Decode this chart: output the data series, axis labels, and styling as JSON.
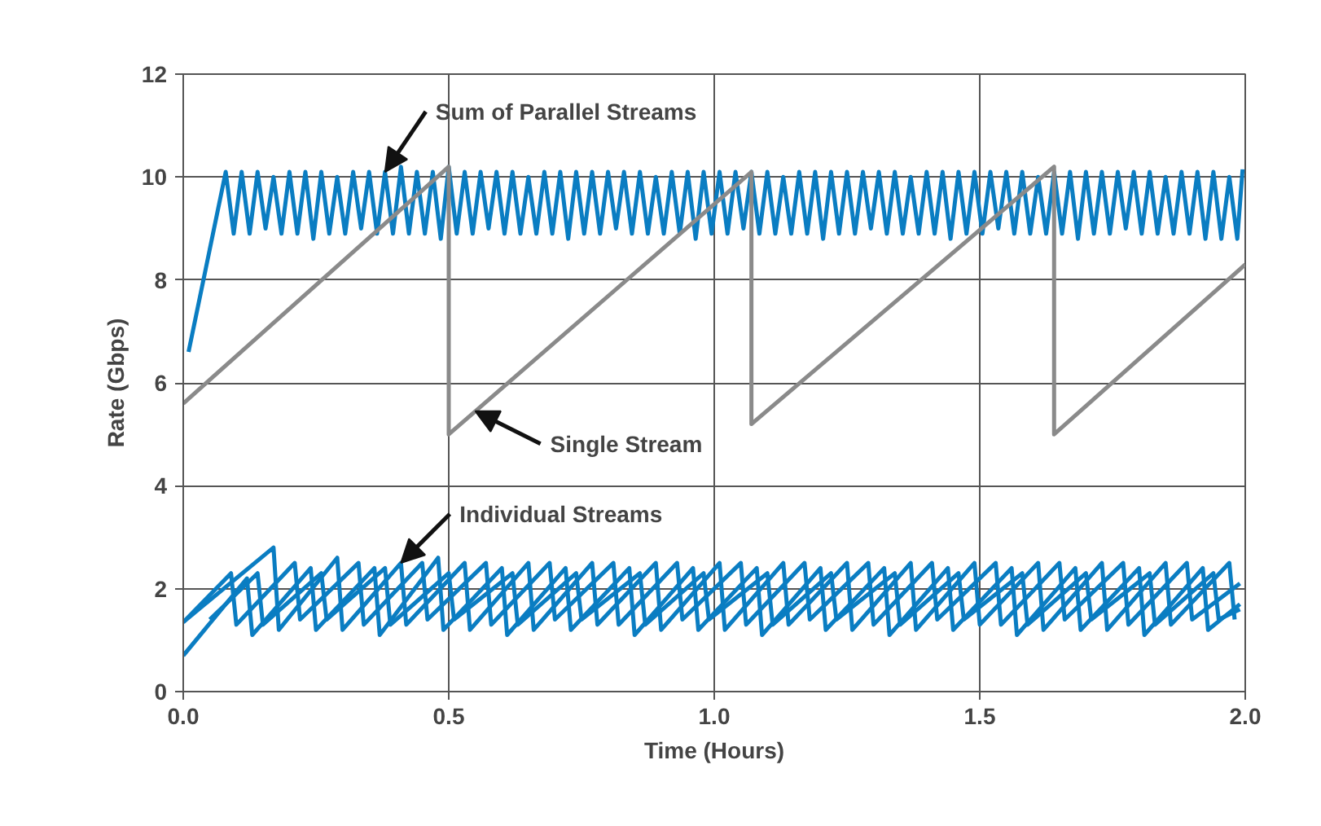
{
  "chart_data": {
    "type": "line",
    "xlabel": "Time (Hours)",
    "ylabel": "Rate (Gbps)",
    "xlim": [
      0,
      2.0
    ],
    "xticks": [
      {
        "value": 0,
        "label": "0.0"
      },
      0.5,
      {
        "value": 1,
        "label": "1.0"
      },
      1.5,
      {
        "value": 2,
        "label": "2.0"
      }
    ],
    "ylim": [
      0,
      12
    ],
    "yticks": [
      0,
      2,
      4,
      6,
      8,
      10,
      12
    ],
    "grid": true,
    "marker": "none",
    "line_style": "solid",
    "series": [
      {
        "color": "#0a7dc2",
        "x": [
          0.01,
          0.08,
          0.095,
          0.11,
          0.125,
          0.14,
          0.155,
          0.17,
          0.185,
          0.2,
          0.215,
          0.23,
          0.245,
          0.26,
          0.275,
          0.29,
          0.305,
          0.32,
          0.335,
          0.35,
          0.365,
          0.38,
          0.395,
          0.41,
          0.425,
          0.44,
          0.455,
          0.47,
          0.485,
          0.5,
          0.515,
          0.53,
          0.545,
          0.56,
          0.575,
          0.59,
          0.605,
          0.62,
          0.635,
          0.65,
          0.665,
          0.68,
          0.695,
          0.71,
          0.725,
          0.74,
          0.755,
          0.77,
          0.785,
          0.8,
          0.815,
          0.83,
          0.845,
          0.86,
          0.875,
          0.89,
          0.905,
          0.92,
          0.935,
          0.95,
          0.965,
          0.98,
          0.995,
          1.01,
          1.025,
          1.04,
          1.055,
          1.07,
          1.085,
          1.1,
          1.115,
          1.13,
          1.145,
          1.16,
          1.175,
          1.19,
          1.205,
          1.22,
          1.235,
          1.25,
          1.265,
          1.28,
          1.295,
          1.31,
          1.325,
          1.34,
          1.355,
          1.37,
          1.385,
          1.4,
          1.415,
          1.43,
          1.445,
          1.46,
          1.475,
          1.49,
          1.505,
          1.52,
          1.535,
          1.55,
          1.565,
          1.58,
          1.595,
          1.61,
          1.625,
          1.64,
          1.655,
          1.67,
          1.685,
          1.7,
          1.715,
          1.73,
          1.745,
          1.76,
          1.775,
          1.79,
          1.805,
          1.82,
          1.835,
          1.85,
          1.865,
          1.88,
          1.895,
          1.91,
          1.925,
          1.94,
          1.955,
          1.97,
          1.985,
          1.995
        ],
        "values": [
          6.6,
          10.1,
          8.9,
          10.1,
          8.9,
          10.1,
          9.0,
          10.0,
          8.9,
          10.1,
          8.9,
          10.1,
          8.8,
          10.1,
          8.9,
          10.0,
          8.9,
          10.1,
          9.0,
          10.1,
          8.9,
          10.1,
          8.9,
          10.2,
          8.9,
          10.1,
          8.9,
          10.1,
          8.8,
          10.2,
          8.9,
          10.1,
          8.9,
          10.1,
          9.0,
          10.1,
          8.9,
          10.1,
          8.9,
          10.0,
          8.9,
          10.1,
          8.9,
          10.1,
          8.8,
          10.1,
          8.9,
          10.1,
          8.9,
          10.1,
          9.0,
          10.1,
          8.9,
          10.1,
          8.9,
          10.0,
          8.9,
          10.1,
          8.9,
          10.1,
          8.8,
          10.1,
          8.9,
          10.1,
          8.9,
          10.1,
          9.0,
          10.1,
          8.9,
          10.1,
          8.9,
          10.0,
          8.9,
          10.1,
          8.9,
          10.1,
          8.8,
          10.1,
          8.9,
          10.1,
          8.9,
          10.1,
          9.0,
          10.1,
          8.9,
          10.1,
          8.9,
          10.0,
          8.9,
          10.1,
          8.9,
          10.1,
          8.8,
          10.1,
          8.9,
          10.1,
          8.9,
          10.1,
          9.0,
          10.1,
          8.9,
          10.1,
          8.9,
          10.0,
          8.9,
          10.1,
          8.9,
          10.1,
          8.8,
          10.1,
          8.9,
          10.1,
          8.9,
          10.1,
          9.0,
          10.1,
          8.9,
          10.1,
          8.9,
          10.0,
          8.9,
          10.1,
          8.9,
          10.1,
          8.8,
          10.1,
          8.8,
          10.0,
          8.8,
          10.15
        ]
      },
      {
        "color": "#8a8a8a",
        "x": [
          0,
          0.5,
          0.5,
          1.07,
          1.07,
          1.64,
          1.64,
          2.0
        ],
        "values": [
          5.6,
          10.2,
          5.0,
          10.1,
          5.2,
          10.2,
          5.0,
          8.3
        ]
      },
      {
        "color": "#0a7dc2",
        "x": [
          0,
          0.17,
          0.18,
          0.29,
          0.3,
          0.41,
          0.42,
          0.53,
          0.54,
          0.65,
          0.66,
          0.77,
          0.78,
          0.89,
          0.9,
          1.01,
          1.02,
          1.13,
          1.14,
          1.25,
          1.26,
          1.37,
          1.38,
          1.49,
          1.5,
          1.61,
          1.62,
          1.73,
          1.74,
          1.85,
          1.86,
          1.97,
          1.98
        ],
        "values": [
          1.35,
          2.8,
          1.2,
          2.6,
          1.2,
          2.5,
          1.3,
          2.5,
          1.2,
          2.5,
          1.2,
          2.5,
          1.3,
          2.5,
          1.2,
          2.5,
          1.2,
          2.5,
          1.3,
          2.5,
          1.2,
          2.5,
          1.2,
          2.5,
          1.3,
          2.5,
          1.2,
          2.5,
          1.2,
          2.5,
          1.3,
          2.5,
          1.4
        ]
      },
      {
        "color": "#0a7dc2",
        "x": [
          0,
          0.12,
          0.13,
          0.24,
          0.25,
          0.36,
          0.37,
          0.48,
          0.49,
          0.6,
          0.61,
          0.72,
          0.73,
          0.84,
          0.85,
          0.96,
          0.97,
          1.08,
          1.09,
          1.2,
          1.21,
          1.32,
          1.33,
          1.44,
          1.45,
          1.56,
          1.57,
          1.68,
          1.69,
          1.8,
          1.81,
          1.92,
          1.93,
          1.99
        ],
        "values": [
          0.7,
          2.2,
          1.1,
          2.4,
          1.2,
          2.4,
          1.1,
          2.6,
          1.2,
          2.4,
          1.1,
          2.4,
          1.2,
          2.4,
          1.1,
          2.4,
          1.2,
          2.4,
          1.1,
          2.4,
          1.2,
          2.4,
          1.1,
          2.4,
          1.2,
          2.4,
          1.1,
          2.4,
          1.2,
          2.4,
          1.1,
          2.4,
          1.2,
          1.7
        ]
      },
      {
        "color": "#0a7dc2",
        "x": [
          0,
          0.09,
          0.1,
          0.21,
          0.22,
          0.33,
          0.34,
          0.45,
          0.46,
          0.57,
          0.58,
          0.69,
          0.7,
          0.81,
          0.82,
          0.93,
          0.94,
          1.05,
          1.06,
          1.17,
          1.18,
          1.29,
          1.3,
          1.41,
          1.42,
          1.53,
          1.54,
          1.65,
          1.66,
          1.77,
          1.78,
          1.89,
          1.9,
          1.99
        ],
        "values": [
          1.35,
          2.3,
          1.3,
          2.5,
          1.4,
          2.5,
          1.3,
          2.5,
          1.4,
          2.5,
          1.3,
          2.5,
          1.4,
          2.5,
          1.3,
          2.5,
          1.4,
          2.5,
          1.3,
          2.5,
          1.4,
          2.5,
          1.3,
          2.5,
          1.4,
          2.5,
          1.3,
          2.5,
          1.4,
          2.5,
          1.3,
          2.5,
          1.4,
          2.1
        ]
      },
      {
        "color": "#0a7dc2",
        "x": [
          0.05,
          0.14,
          0.15,
          0.26,
          0.27,
          0.38,
          0.39,
          0.5,
          0.51,
          0.62,
          0.63,
          0.74,
          0.75,
          0.86,
          0.87,
          0.98,
          0.99,
          1.1,
          1.11,
          1.22,
          1.23,
          1.34,
          1.35,
          1.46,
          1.47,
          1.58,
          1.59,
          1.7,
          1.71,
          1.82,
          1.83,
          1.94,
          1.95,
          1.99
        ],
        "values": [
          1.4,
          2.3,
          1.3,
          2.3,
          1.4,
          2.4,
          1.3,
          2.3,
          1.4,
          2.3,
          1.3,
          2.3,
          1.4,
          2.3,
          1.3,
          2.3,
          1.4,
          2.3,
          1.3,
          2.3,
          1.4,
          2.3,
          1.3,
          2.3,
          1.4,
          2.3,
          1.3,
          2.3,
          1.4,
          2.3,
          1.3,
          2.3,
          1.4,
          1.6
        ]
      }
    ],
    "annotations": [
      {
        "text": "Sum of Parallel Streams",
        "x": 0.38,
        "y": 10.1
      },
      {
        "text": "Single Stream",
        "x": 0.55,
        "y": 5.45
      },
      {
        "text": "Individual Streams",
        "x": 0.41,
        "y": 2.5
      }
    ]
  }
}
